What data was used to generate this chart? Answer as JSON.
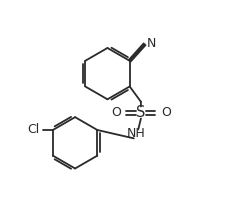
{
  "bg_color": "#ffffff",
  "line_color": "#2a2a2a",
  "text_color": "#2a2a2a",
  "lw": 1.3,
  "fs": 7.5,
  "figsize": [
    2.35,
    2.12
  ],
  "dpi": 100,
  "xlim": [
    0.0,
    10.0
  ],
  "ylim": [
    0.0,
    9.5
  ]
}
